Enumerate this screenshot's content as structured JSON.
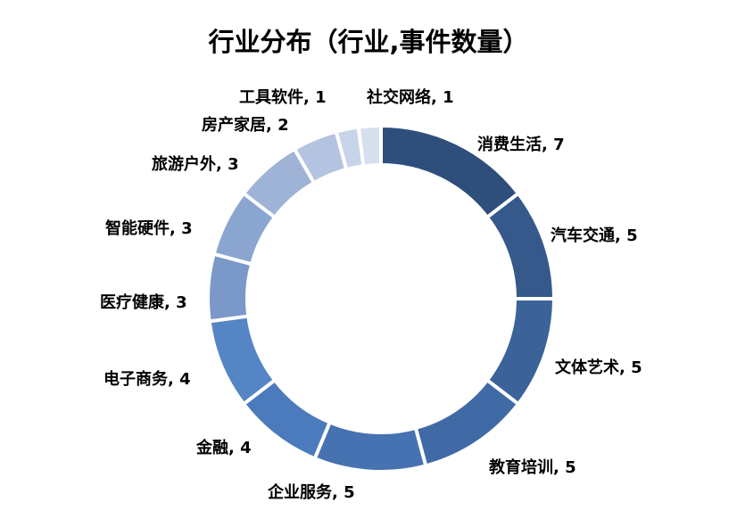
{
  "chart_data": {
    "type": "pie",
    "title": "行业分布（行业,事件数量）",
    "legend": "none",
    "categories": [
      "消费生活",
      "汽车交通",
      "文体艺术",
      "教育培训",
      "企业服务",
      "金融",
      "电子商务",
      "医疗健康",
      "智能硬件",
      "旅游户外",
      "房产家居",
      "工具软件",
      "社交网络"
    ],
    "values": [
      7,
      5,
      5,
      5,
      5,
      4,
      4,
      3,
      3,
      3,
      2,
      1,
      1
    ],
    "colors": [
      "#2e4f7c",
      "#36598b",
      "#3b6399",
      "#406aa6",
      "#4672b1",
      "#4c7bbd",
      "#5585c4",
      "#7a98c8",
      "#8aa5d0",
      "#9eb3d6",
      "#b3c3e0",
      "#c8d4ea",
      "#d6dfee"
    ]
  }
}
